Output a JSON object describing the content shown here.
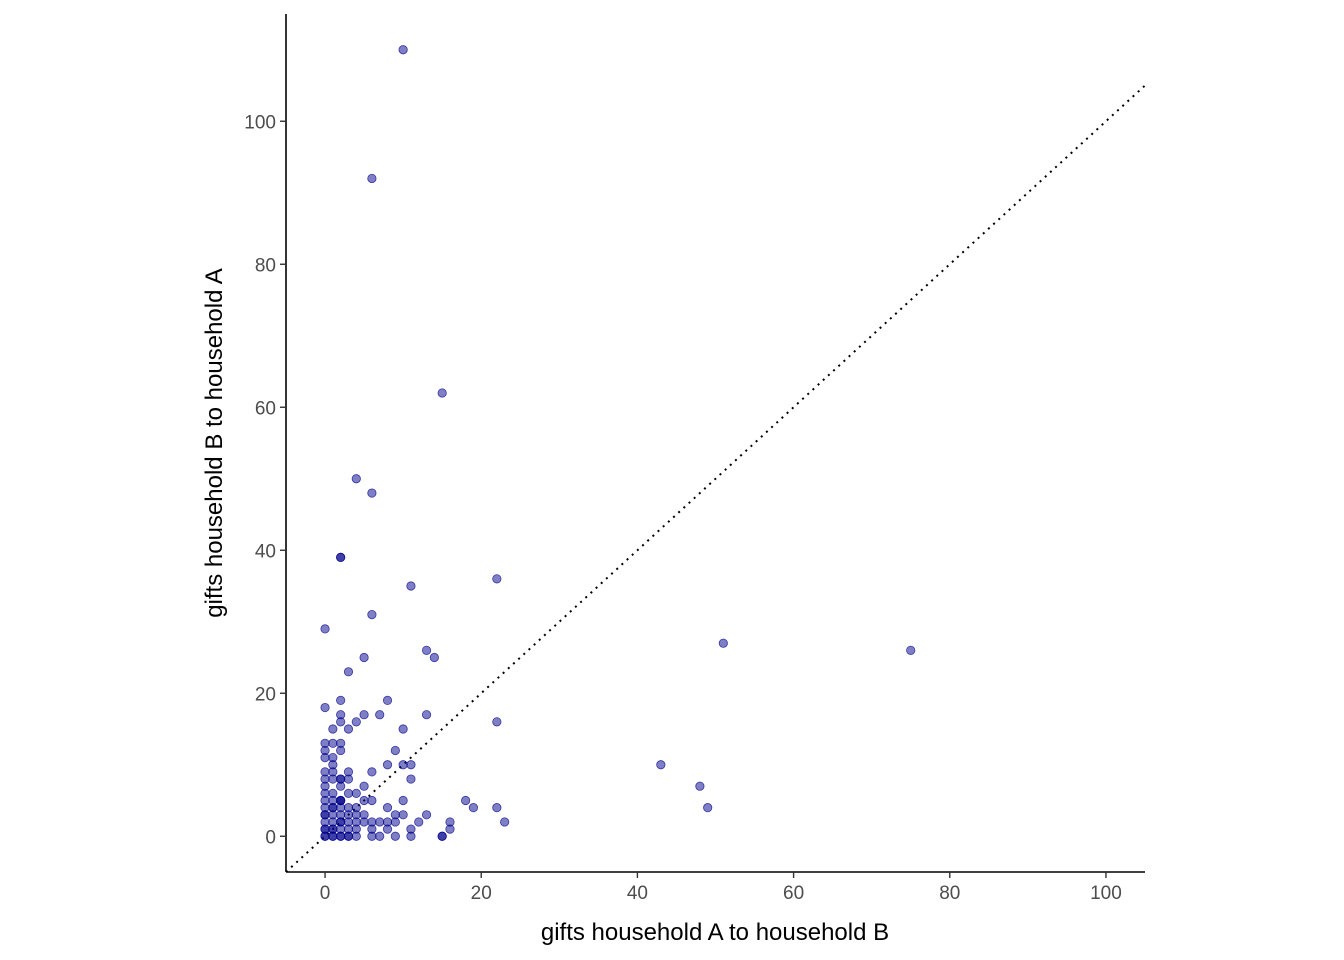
{
  "chart_data": {
    "type": "scatter",
    "xlabel": "gifts household A to household B",
    "ylabel": "gifts household B to household A",
    "xlim": [
      -5,
      105
    ],
    "ylim": [
      -5,
      115
    ],
    "xticks": [
      0,
      20,
      40,
      60,
      80,
      100
    ],
    "yticks": [
      0,
      20,
      40,
      60,
      80,
      100
    ],
    "reference_line": "y = x (dotted)",
    "grid": false,
    "legend": "none",
    "point_color": "#00008B",
    "point_opacity": 0.5,
    "points": [
      [
        10,
        110
      ],
      [
        6,
        92
      ],
      [
        15,
        62
      ],
      [
        4,
        50
      ],
      [
        6,
        48
      ],
      [
        2,
        39
      ],
      [
        2,
        39
      ],
      [
        22,
        36
      ],
      [
        11,
        35
      ],
      [
        6,
        31
      ],
      [
        0,
        29
      ],
      [
        51,
        27
      ],
      [
        13,
        26
      ],
      [
        75,
        26
      ],
      [
        14,
        25
      ],
      [
        5,
        25
      ],
      [
        3,
        23
      ],
      [
        2,
        19
      ],
      [
        8,
        19
      ],
      [
        0,
        18
      ],
      [
        2,
        17
      ],
      [
        5,
        17
      ],
      [
        7,
        17
      ],
      [
        13,
        17
      ],
      [
        2,
        16
      ],
      [
        4,
        16
      ],
      [
        22,
        16
      ],
      [
        1,
        15
      ],
      [
        3,
        15
      ],
      [
        10,
        15
      ],
      [
        0,
        13
      ],
      [
        1,
        13
      ],
      [
        2,
        13
      ],
      [
        0,
        12
      ],
      [
        2,
        12
      ],
      [
        9,
        12
      ],
      [
        0,
        11
      ],
      [
        1,
        11
      ],
      [
        10,
        10
      ],
      [
        1,
        10
      ],
      [
        8,
        10
      ],
      [
        11,
        10
      ],
      [
        43,
        10
      ],
      [
        0,
        9
      ],
      [
        1,
        9
      ],
      [
        3,
        9
      ],
      [
        6,
        9
      ],
      [
        0,
        8
      ],
      [
        1,
        8
      ],
      [
        2,
        8
      ],
      [
        2,
        8
      ],
      [
        3,
        8
      ],
      [
        11,
        8
      ],
      [
        0,
        7
      ],
      [
        2,
        7
      ],
      [
        5,
        7
      ],
      [
        48,
        7
      ],
      [
        0,
        6
      ],
      [
        1,
        6
      ],
      [
        3,
        6
      ],
      [
        4,
        6
      ],
      [
        0,
        5
      ],
      [
        1,
        5
      ],
      [
        2,
        5
      ],
      [
        2,
        5
      ],
      [
        5,
        5
      ],
      [
        6,
        5
      ],
      [
        10,
        5
      ],
      [
        18,
        5
      ],
      [
        0,
        4
      ],
      [
        1,
        4
      ],
      [
        2,
        4
      ],
      [
        3,
        4
      ],
      [
        4,
        4
      ],
      [
        8,
        4
      ],
      [
        19,
        4
      ],
      [
        22,
        4
      ],
      [
        49,
        4
      ],
      [
        0,
        3
      ],
      [
        1,
        3
      ],
      [
        2,
        3
      ],
      [
        3,
        3
      ],
      [
        4,
        3
      ],
      [
        5,
        3
      ],
      [
        9,
        3
      ],
      [
        10,
        3
      ],
      [
        13,
        3
      ],
      [
        0,
        2
      ],
      [
        1,
        2
      ],
      [
        2,
        2
      ],
      [
        3,
        2
      ],
      [
        4,
        2
      ],
      [
        5,
        2
      ],
      [
        6,
        2
      ],
      [
        7,
        2
      ],
      [
        8,
        2
      ],
      [
        9,
        2
      ],
      [
        12,
        2
      ],
      [
        16,
        2
      ],
      [
        23,
        2
      ],
      [
        0,
        1
      ],
      [
        1,
        1
      ],
      [
        2,
        1
      ],
      [
        3,
        1
      ],
      [
        4,
        1
      ],
      [
        6,
        1
      ],
      [
        8,
        1
      ],
      [
        11,
        1
      ],
      [
        16,
        1
      ],
      [
        0,
        0
      ],
      [
        1,
        0
      ],
      [
        2,
        0
      ],
      [
        3,
        0
      ],
      [
        4,
        0
      ],
      [
        6,
        0
      ],
      [
        7,
        0
      ],
      [
        9,
        0
      ],
      [
        11,
        0
      ],
      [
        15,
        0
      ],
      [
        0,
        0
      ],
      [
        1,
        0
      ],
      [
        2,
        0
      ],
      [
        3,
        0
      ],
      [
        15,
        0
      ],
      [
        0,
        1
      ],
      [
        1,
        1
      ],
      [
        2,
        2
      ],
      [
        0,
        3
      ],
      [
        1,
        4
      ],
      [
        2,
        5
      ]
    ]
  }
}
